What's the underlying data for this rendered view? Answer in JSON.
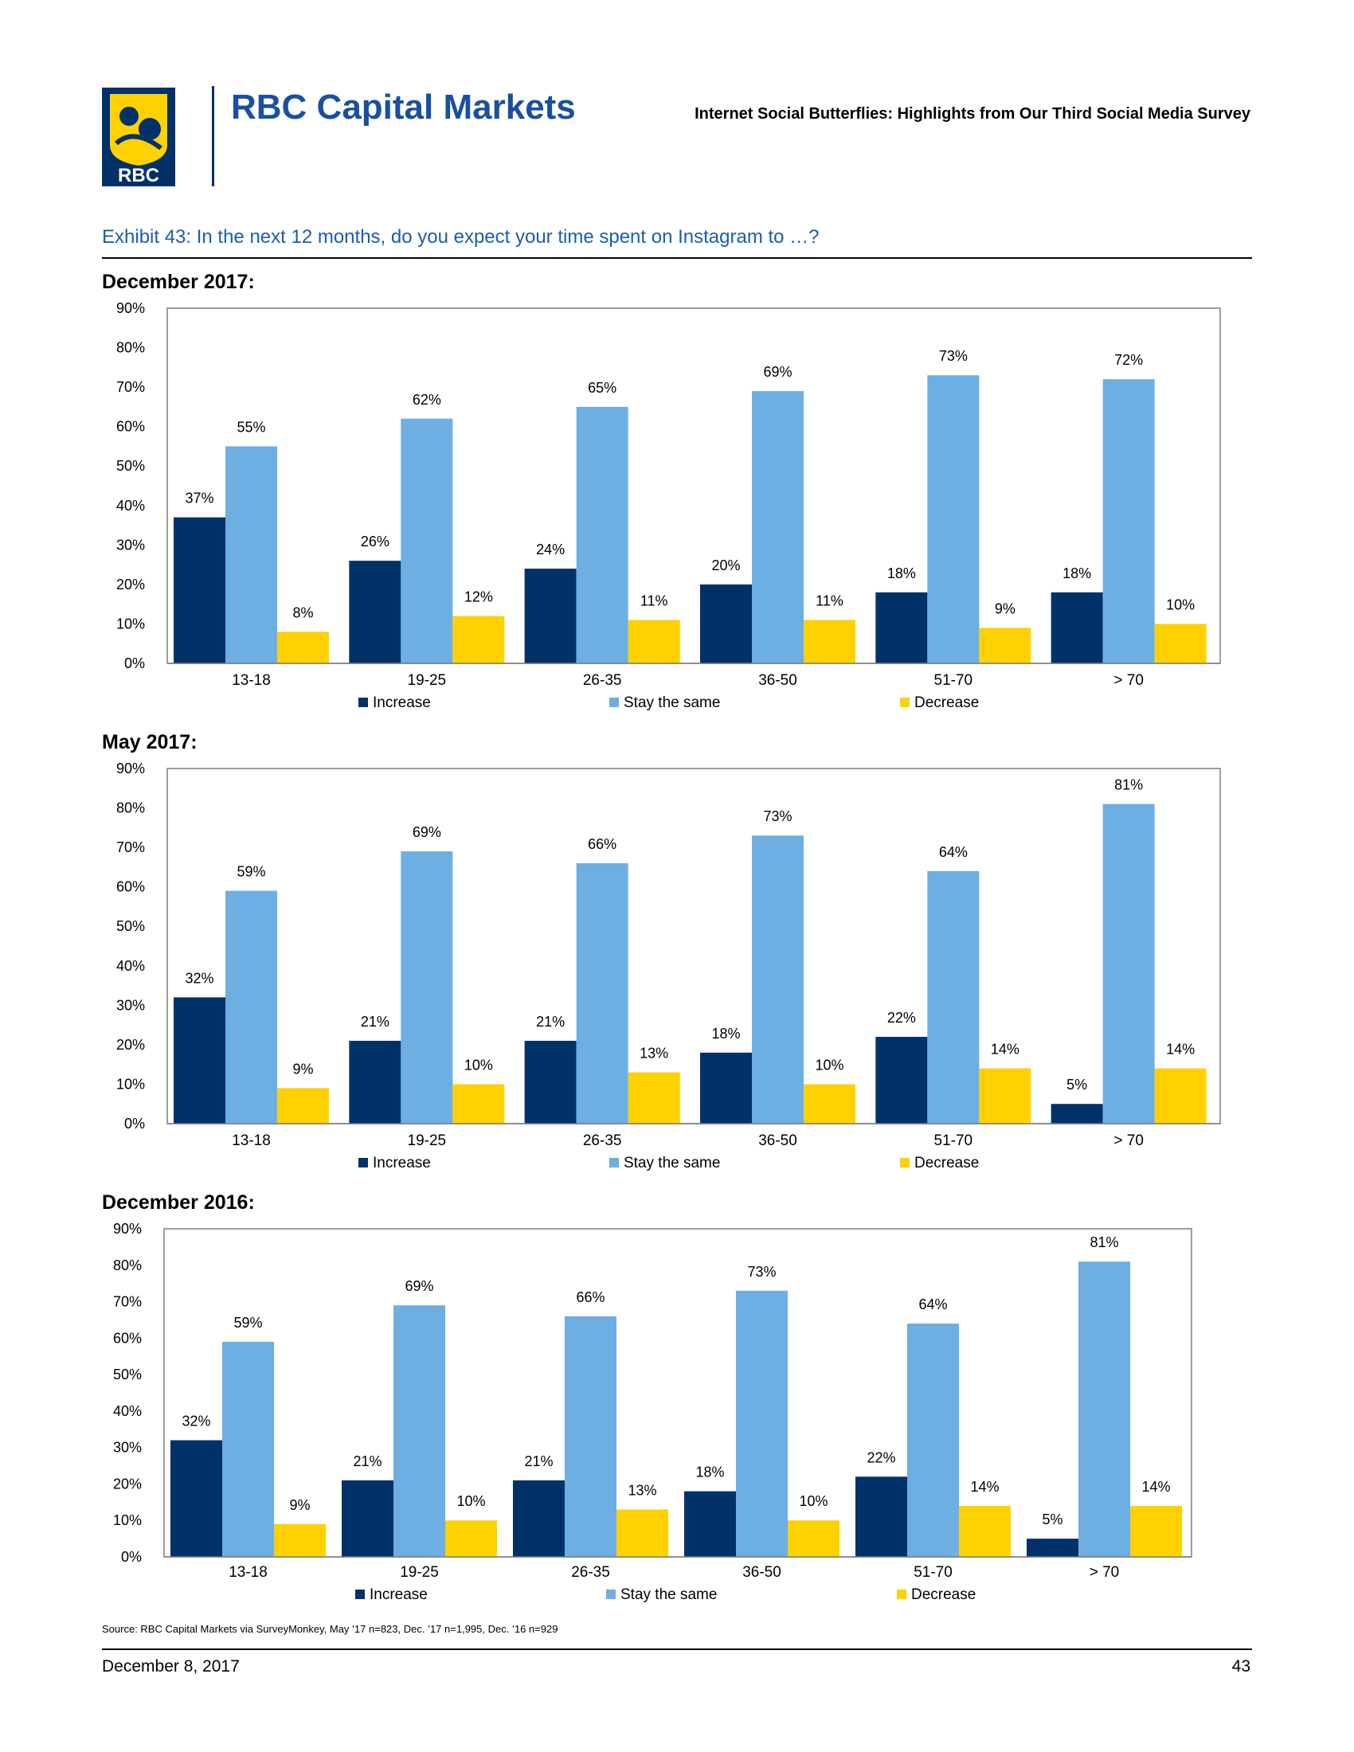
{
  "header": {
    "logo_text": "RBC",
    "brand_name": "RBC Capital Markets",
    "document_title": "Internet Social Butterflies: Highlights from Our Third Social Media Survey"
  },
  "exhibit_title": "Exhibit 43: In the next 12 months, do you expect your time spent on Instagram to …?",
  "colors": {
    "increase": "#003168",
    "stay": "#6daee3",
    "decrease": "#ffd100"
  },
  "chart_data": [
    {
      "type": "bar",
      "title": "December 2017:",
      "categories": [
        "13-18",
        "19-25",
        "26-35",
        "36-50",
        "51-70",
        "> 70"
      ],
      "series": [
        {
          "name": "Increase",
          "values": [
            37,
            26,
            24,
            20,
            18,
            18
          ],
          "labels": [
            "37%",
            "26%",
            "24%",
            "20%",
            "18%",
            "18%"
          ]
        },
        {
          "name": "Stay the same",
          "values": [
            55,
            62,
            65,
            69,
            73,
            72
          ],
          "labels": [
            "55%",
            "62%",
            "65%",
            "69%",
            "73%",
            "72%"
          ]
        },
        {
          "name": "Decrease",
          "values": [
            8,
            12,
            11,
            11,
            9,
            10
          ],
          "labels": [
            "8%",
            "12%",
            "11%",
            "11%",
            "9%",
            "10%"
          ]
        }
      ],
      "ylim": [
        0,
        90
      ],
      "yticks": [
        "0%",
        "10%",
        "20%",
        "30%",
        "40%",
        "50%",
        "60%",
        "70%",
        "80%",
        "90%"
      ],
      "legend": "bottom"
    },
    {
      "type": "bar",
      "title": "May 2017:",
      "categories": [
        "13-18",
        "19-25",
        "26-35",
        "36-50",
        "51-70",
        "> 70"
      ],
      "series": [
        {
          "name": "Increase",
          "values": [
            32,
            21,
            21,
            18,
            22,
            5
          ],
          "labels": [
            "32%",
            "21%",
            "21%",
            "18%",
            "22%",
            "5%"
          ]
        },
        {
          "name": "Stay the same",
          "values": [
            59,
            69,
            66,
            73,
            64,
            81
          ],
          "labels": [
            "59%",
            "69%",
            "66%",
            "73%",
            "64%",
            "81%"
          ]
        },
        {
          "name": "Decrease",
          "values": [
            9,
            10,
            13,
            10,
            14,
            14
          ],
          "labels": [
            "9%",
            "10%",
            "13%",
            "10%",
            "14%",
            "14%"
          ]
        }
      ],
      "ylim": [
        0,
        90
      ],
      "yticks": [
        "0%",
        "10%",
        "20%",
        "30%",
        "40%",
        "50%",
        "60%",
        "70%",
        "80%",
        "90%"
      ],
      "legend": "bottom"
    },
    {
      "type": "bar",
      "title": "December 2016:",
      "categories": [
        "13-18",
        "19-25",
        "26-35",
        "36-50",
        "51-70",
        "> 70"
      ],
      "series": [
        {
          "name": "Increase",
          "values": [
            32,
            21,
            21,
            18,
            22,
            5
          ],
          "labels": [
            "32%",
            "21%",
            "21%",
            "18%",
            "22%",
            "5%"
          ]
        },
        {
          "name": "Stay the same",
          "values": [
            59,
            69,
            66,
            73,
            64,
            81
          ],
          "labels": [
            "59%",
            "69%",
            "66%",
            "73%",
            "64%",
            "81%"
          ]
        },
        {
          "name": "Decrease",
          "values": [
            9,
            10,
            13,
            10,
            14,
            14
          ],
          "labels": [
            "9%",
            "10%",
            "13%",
            "10%",
            "14%",
            "14%"
          ]
        }
      ],
      "ylim": [
        0,
        90
      ],
      "yticks": [
        "0%",
        "10%",
        "20%",
        "30%",
        "40%",
        "50%",
        "60%",
        "70%",
        "80%",
        "90%"
      ],
      "legend": "bottom"
    }
  ],
  "source_note": "Source: RBC Capital Markets via SurveyMonkey, May ’17 n=823, Dec. ’17 n=1,995, Dec. ’16 n=929",
  "footer": {
    "date": "December 8, 2017",
    "page": "43"
  }
}
